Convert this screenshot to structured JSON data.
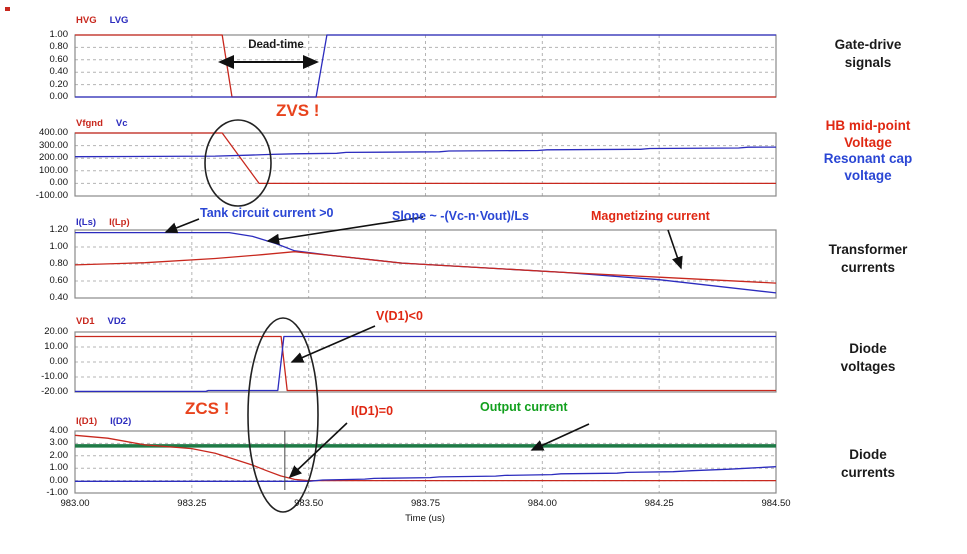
{
  "colors": {
    "red_trace": "#c8281e",
    "blue_trace": "#2c2cbe",
    "green_trace": "#1e7a46",
    "grid": "#b4b4b4",
    "frame": "#8a8a8a",
    "cursor": "#444444",
    "annotation_red": "#e02813",
    "annotation_orange": "#e8431d",
    "annotation_blue": "#2a46d4",
    "annotation_green": "#12a01e",
    "text": "#1a1a1a"
  },
  "annotations": {
    "dead_time": {
      "text": "Dead-time",
      "color": "#1a1a1a"
    },
    "zvs": {
      "text": "ZVS !",
      "color": "#e8431d"
    },
    "tank": {
      "text": "Tank circuit current >0",
      "color": "#2a46d4"
    },
    "slope": {
      "text": "Slope ~ -(Vc-n·Vout)/Ls",
      "color": "#2a46d4"
    },
    "magnetizing": {
      "text": "Magnetizing current",
      "color": "#e02813"
    },
    "vd1": {
      "text": "V(D1)<0",
      "color": "#e02813"
    },
    "zcs": {
      "text": "ZCS !",
      "color": "#e8431d"
    },
    "id1": {
      "text": "I(D1)=0",
      "color": "#e02813"
    },
    "output": {
      "text": "Output current",
      "color": "#12a01e"
    }
  },
  "right_labels": [
    {
      "id": "gate-drive",
      "lines": [
        {
          "text": "Gate-drive",
          "color": "#1a1a1a"
        },
        {
          "text": "signals",
          "color": "#1a1a1a"
        }
      ]
    },
    {
      "id": "hb-voltage",
      "lines": [
        {
          "text": "HB mid-point",
          "color": "#e02813"
        },
        {
          "text": "Voltage",
          "color": "#e02813"
        },
        {
          "text": "Resonant cap",
          "color": "#2a46d4"
        },
        {
          "text": "voltage",
          "color": "#2a46d4"
        }
      ]
    },
    {
      "id": "transformer",
      "lines": [
        {
          "text": "Transformer",
          "color": "#1a1a1a"
        },
        {
          "text": "currents",
          "color": "#1a1a1a"
        }
      ]
    },
    {
      "id": "diode-voltages",
      "lines": [
        {
          "text": "Diode",
          "color": "#1a1a1a"
        },
        {
          "text": "voltages",
          "color": "#1a1a1a"
        }
      ]
    },
    {
      "id": "diode-currents",
      "lines": [
        {
          "text": "Diode",
          "color": "#1a1a1a"
        },
        {
          "text": "currents",
          "color": "#1a1a1a"
        }
      ]
    }
  ],
  "chart_data": {
    "type": "line",
    "x": {
      "label": "Time (us)",
      "range": [
        983.0,
        984.5
      ],
      "tick_vals": [
        983.0,
        983.25,
        983.5,
        983.75,
        984.0,
        984.25,
        984.5
      ],
      "ticks": [
        "983.00",
        "983.25",
        "983.50",
        "983.75",
        "984.00",
        "984.25",
        "984.50"
      ]
    },
    "panels": [
      {
        "id": "gate-drive-signals",
        "ylim": [
          0,
          1
        ],
        "ytick_vals": [
          1,
          0.8,
          0.6,
          0.4,
          0.2,
          0
        ],
        "yticks": [
          "1.00",
          "0.80",
          "0.60",
          "0.40",
          "0.20",
          "0.00"
        ],
        "series": [
          {
            "name": "HVG",
            "color": "#c8281e",
            "legend": true,
            "points": [
              [
                983.0,
                1
              ],
              [
                983.315,
                1
              ],
              [
                983.336,
                0
              ],
              [
                984.5,
                0
              ]
            ]
          },
          {
            "name": "LVG",
            "color": "#2c2cbe",
            "legend": true,
            "points": [
              [
                983.0,
                0
              ],
              [
                983.516,
                0
              ],
              [
                983.539,
                1
              ],
              [
                984.5,
                1
              ]
            ]
          }
        ]
      },
      {
        "id": "hb-and-resonant-cap-voltage",
        "ylim": [
          -100,
          400
        ],
        "ytick_vals": [
          400,
          300,
          200,
          100,
          0,
          -100
        ],
        "yticks": [
          "400.00",
          "300.00",
          "200.00",
          "100.00",
          "0.00",
          "-100.00"
        ],
        "series": [
          {
            "name": "Vfgnd",
            "color": "#c8281e",
            "legend": true,
            "points": [
              [
                983.0,
                400
              ],
              [
                983.315,
                400
              ],
              [
                983.394,
                0
              ],
              [
                984.5,
                0
              ]
            ]
          },
          {
            "name": "Vc",
            "color": "#2c2cbe",
            "legend": true,
            "points": [
              [
                983.0,
                212
              ],
              [
                983.3,
                217
              ],
              [
                983.37,
                224
              ],
              [
                983.42,
                230
              ],
              [
                983.47,
                235
              ],
              [
                983.56,
                239
              ],
              [
                983.58,
                246
              ],
              [
                983.78,
                251
              ],
              [
                983.8,
                257
              ],
              [
                983.99,
                261
              ],
              [
                984.01,
                267
              ],
              [
                984.21,
                271
              ],
              [
                984.23,
                277
              ],
              [
                984.42,
                281
              ],
              [
                984.44,
                287
              ],
              [
                984.5,
                288
              ]
            ]
          }
        ]
      },
      {
        "id": "transformer-currents",
        "ylim": [
          0.4,
          1.2
        ],
        "ytick_vals": [
          1.2,
          1.0,
          0.8,
          0.6,
          0.4
        ],
        "yticks": [
          "1.20",
          "1.00",
          "0.80",
          "0.60",
          "0.40"
        ],
        "series": [
          {
            "name": "I(Ls)",
            "color": "#2c2cbe",
            "legend": true,
            "points": [
              [
                983.0,
                1.17
              ],
              [
                983.33,
                1.17
              ],
              [
                983.38,
                1.125
              ],
              [
                983.43,
                1.04
              ],
              [
                983.47,
                0.955
              ],
              [
                983.55,
                0.9
              ],
              [
                983.7,
                0.81
              ],
              [
                984.05,
                0.7
              ],
              [
                984.25,
                0.615
              ],
              [
                984.5,
                0.46
              ]
            ]
          },
          {
            "name": "I(Lp)",
            "color": "#c8281e",
            "legend": true,
            "points": [
              [
                983.0,
                0.79
              ],
              [
                983.15,
                0.815
              ],
              [
                983.3,
                0.865
              ],
              [
                983.4,
                0.91
              ],
              [
                983.47,
                0.945
              ],
              [
                983.55,
                0.9
              ],
              [
                983.7,
                0.81
              ],
              [
                984.05,
                0.7
              ],
              [
                984.25,
                0.645
              ],
              [
                984.5,
                0.575
              ]
            ]
          }
        ]
      },
      {
        "id": "diode-voltages",
        "ylim": [
          -20,
          20
        ],
        "ytick_vals": [
          20,
          10,
          0,
          -10,
          -20
        ],
        "yticks": [
          "20.00",
          "10.00",
          "0.00",
          "-10.00",
          "-20.00"
        ],
        "series": [
          {
            "name": "VD1",
            "color": "#c8281e",
            "legend": true,
            "points": [
              [
                983.0,
                17
              ],
              [
                983.441,
                17
              ],
              [
                983.454,
                -19
              ],
              [
                984.5,
                -19
              ]
            ]
          },
          {
            "name": "VD2",
            "color": "#2c2cbe",
            "legend": true,
            "points": [
              [
                983.0,
                -19.6
              ],
              [
                983.28,
                -19.6
              ],
              [
                983.285,
                -19
              ],
              [
                983.434,
                -19
              ],
              [
                983.447,
                17
              ],
              [
                984.5,
                17
              ]
            ]
          }
        ]
      },
      {
        "id": "diode-currents",
        "ylim": [
          -1,
          4
        ],
        "ytick_vals": [
          4,
          3,
          2,
          1,
          0,
          -1
        ],
        "yticks": [
          "4.00",
          "3.00",
          "2.00",
          "1.00",
          "0.00",
          "-1.00"
        ],
        "series": [
          {
            "name": "Output current",
            "color": "#1e7a46",
            "legend": false,
            "width": 3.5,
            "points": [
              [
                983.0,
                2.8
              ],
              [
                984.5,
                2.8
              ]
            ]
          },
          {
            "name": "I(D1)",
            "color": "#c8281e",
            "legend": true,
            "points": [
              [
                983.0,
                3.65
              ],
              [
                983.07,
                3.42
              ],
              [
                983.15,
                2.88
              ],
              [
                983.25,
                2.58
              ],
              [
                983.3,
                2.2
              ],
              [
                983.34,
                1.73
              ],
              [
                983.38,
                1.25
              ],
              [
                983.41,
                0.8
              ],
              [
                983.44,
                0.38
              ],
              [
                983.47,
                0.1
              ],
              [
                983.5,
                0.0
              ],
              [
                984.5,
                0.0
              ]
            ]
          },
          {
            "name": "I(D2)",
            "color": "#2c2cbe",
            "legend": true,
            "points": [
              [
                983.0,
                -0.06
              ],
              [
                983.5,
                -0.06
              ],
              [
                983.53,
                0.05
              ],
              [
                983.62,
                0.12
              ],
              [
                983.64,
                0.18
              ],
              [
                983.76,
                0.24
              ],
              [
                983.78,
                0.3
              ],
              [
                983.9,
                0.36
              ],
              [
                983.92,
                0.42
              ],
              [
                984.02,
                0.48
              ],
              [
                984.04,
                0.55
              ],
              [
                984.16,
                0.6
              ],
              [
                984.18,
                0.66
              ],
              [
                984.28,
                0.72
              ],
              [
                984.32,
                0.8
              ],
              [
                984.4,
                0.92
              ],
              [
                984.44,
                1.0
              ],
              [
                984.5,
                1.12
              ]
            ]
          }
        ]
      }
    ]
  }
}
